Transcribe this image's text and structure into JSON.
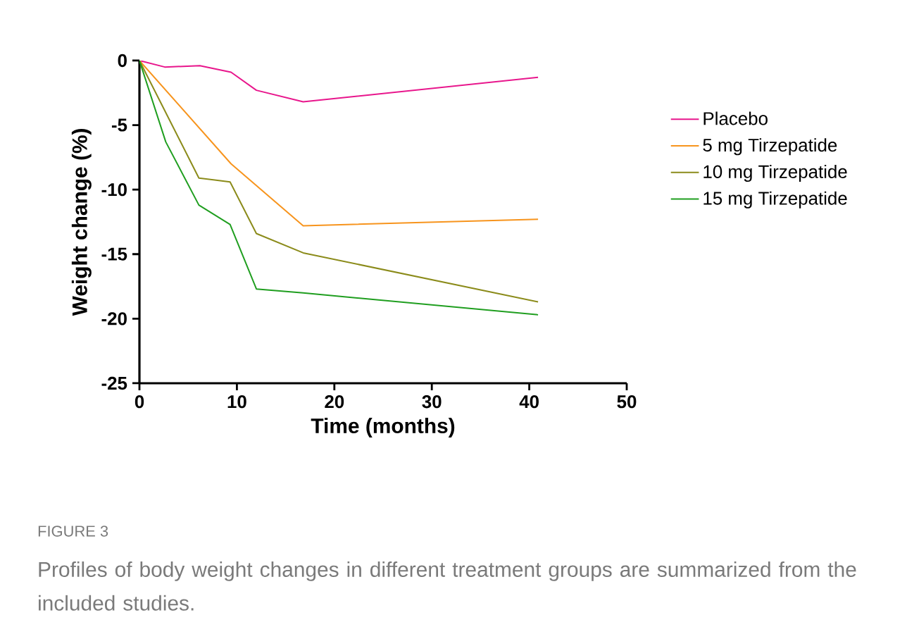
{
  "chart_data": {
    "type": "line",
    "xlabel": "Time (months)",
    "ylabel": "Weight change (%)",
    "xlim": [
      0,
      50
    ],
    "xticks": [
      0,
      10,
      20,
      30,
      40,
      50
    ],
    "ylim": [
      -25,
      0
    ],
    "yticks": [
      -25,
      -20,
      -15,
      -10,
      -5,
      0
    ],
    "grid": false,
    "legend": "right",
    "marker": "none",
    "line_style": "solid",
    "series": [
      {
        "name": "Placebo",
        "color": "#e8168c",
        "x": [
          0,
          2.6,
          6.2,
          9.4,
          12.0,
          16.8,
          40.9
        ],
        "values": [
          0,
          -0.5,
          -0.4,
          -0.9,
          -2.3,
          -3.2,
          -1.3
        ]
      },
      {
        "name": "5 mg Tirzepatide",
        "color": "#f7941d",
        "x": [
          0,
          9.4,
          16.8,
          40.9
        ],
        "values": [
          0,
          -8.0,
          -12.8,
          -12.3
        ]
      },
      {
        "name": "10 mg Tirzepatide",
        "color": "#8b8b1a",
        "x": [
          0,
          6.1,
          9.3,
          12.0,
          16.8,
          40.9
        ],
        "values": [
          0,
          -9.1,
          -9.4,
          -13.4,
          -14.9,
          -18.7
        ]
      },
      {
        "name": "15 mg Tirzepatide",
        "color": "#1f9e1f",
        "x": [
          0,
          2.7,
          6.1,
          9.3,
          12.0,
          16.8,
          40.9
        ],
        "values": [
          0,
          -6.3,
          -11.2,
          -12.7,
          -17.7,
          -18.0,
          -19.7
        ]
      }
    ],
    "annotations": [
      "FIGURE 3",
      "Profiles of body weight changes in different treatment groups are summarized from the included studies."
    ]
  }
}
